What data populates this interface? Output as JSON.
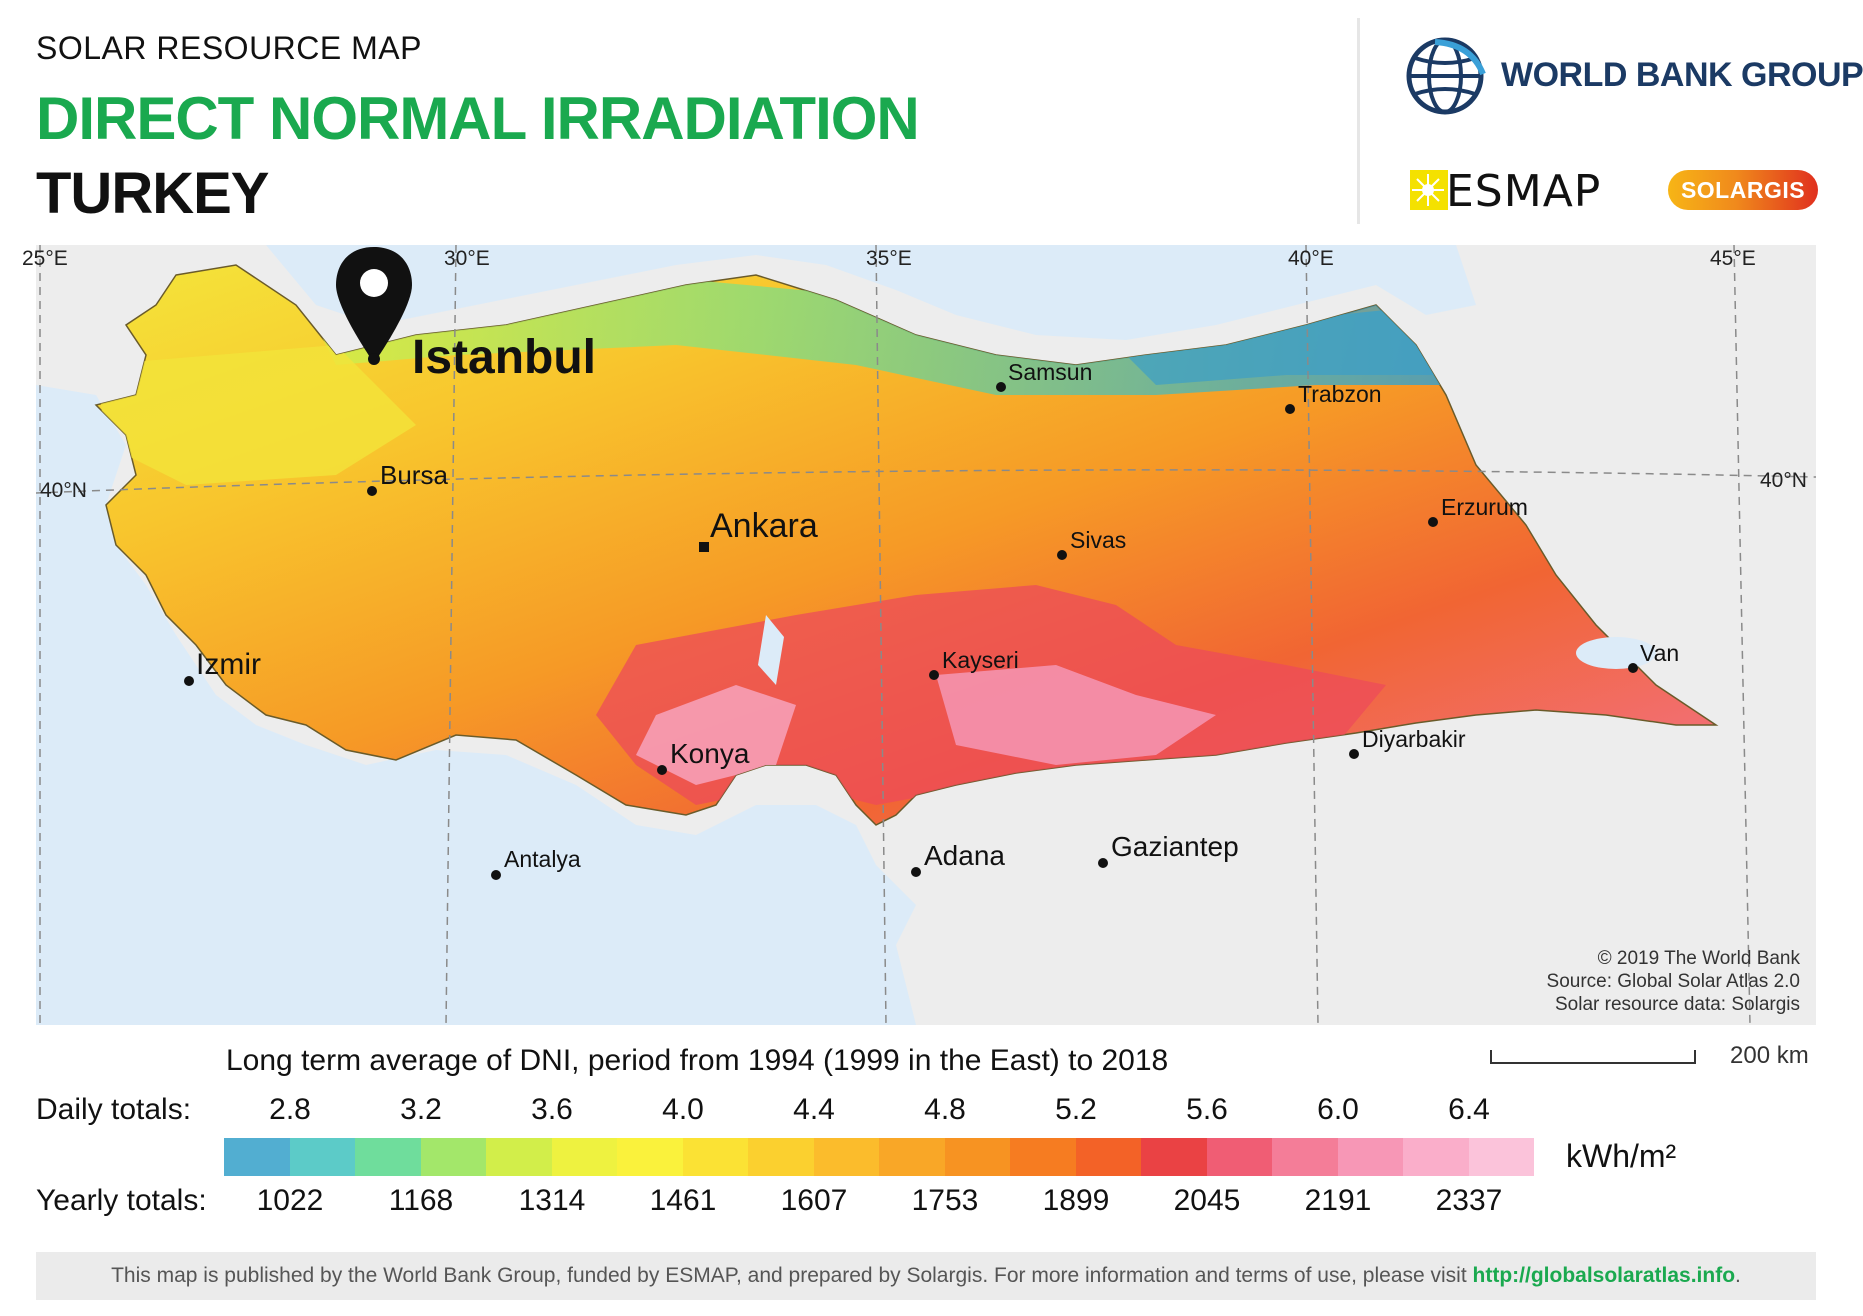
{
  "header": {
    "kicker": "SOLAR RESOURCE MAP",
    "title": "DIRECT NORMAL IRRADIATION",
    "country": "TURKEY"
  },
  "logos": {
    "world_bank": "WORLD BANK GROUP",
    "esmap": "ESMAP",
    "solargis": "SOLARGIS",
    "world_bank_color": "#1b3a64",
    "accent_green": "#1aa94f"
  },
  "map": {
    "longitude_labels": [
      "25°E",
      "30°E",
      "35°E",
      "40°E",
      "45°E"
    ],
    "latitude_labels": {
      "left": "40°N",
      "right": "40°N"
    },
    "cities": [
      {
        "name": "Istanbul",
        "style": "marker"
      },
      {
        "name": "Samsun",
        "style": "small"
      },
      {
        "name": "Trabzon",
        "style": "small"
      },
      {
        "name": "Bursa",
        "style": "small"
      },
      {
        "name": "Ankara",
        "style": "capital"
      },
      {
        "name": "Sivas",
        "style": "small"
      },
      {
        "name": "Erzurum",
        "style": "small"
      },
      {
        "name": "Izmir",
        "style": "medium"
      },
      {
        "name": "Kayseri",
        "style": "small"
      },
      {
        "name": "Van",
        "style": "small"
      },
      {
        "name": "Konya",
        "style": "medium"
      },
      {
        "name": "Diyarbakir",
        "style": "small"
      },
      {
        "name": "Antalya",
        "style": "small"
      },
      {
        "name": "Adana",
        "style": "medium"
      },
      {
        "name": "Gaziantep",
        "style": "medium"
      }
    ],
    "credits": [
      "© 2019 The World Bank",
      "Source: Global Solar Atlas 2.0",
      "Solar resource data: Solargis"
    ],
    "sea_color": "#dcebf8",
    "land_outside_color": "#ededed"
  },
  "legend": {
    "caption": "Long term average of DNI, period from 1994 (1999 in the East) to 2018",
    "daily_label": "Daily totals:",
    "yearly_label": "Yearly totals:",
    "daily_ticks": [
      "2.8",
      "3.2",
      "3.6",
      "4.0",
      "4.4",
      "4.8",
      "5.2",
      "5.6",
      "6.0",
      "6.4"
    ],
    "yearly_ticks": [
      "1022",
      "1168",
      "1314",
      "1461",
      "1607",
      "1753",
      "1899",
      "2045",
      "2191",
      "2337"
    ],
    "unit": "kWh/m²",
    "ramp_colors": [
      "#52aed1",
      "#5ccbc8",
      "#6fdd9c",
      "#a3e76a",
      "#d2ee4a",
      "#eef240",
      "#faf23c",
      "#fbe234",
      "#fbd02f",
      "#fbbc2c",
      "#f9a727",
      "#f79322",
      "#f67c21",
      "#f36227",
      "#ea4244",
      "#f05d74",
      "#f47d98",
      "#f797b6",
      "#faaeca",
      "#fbc3da"
    ]
  },
  "scale": {
    "label": "200 km"
  },
  "footer": {
    "text": "This map is published by the World Bank Group, funded by ESMAP, and prepared by Solargis. For more information and terms of use, please visit ",
    "link": "http://globalsolaratlas.info",
    "end": "."
  }
}
